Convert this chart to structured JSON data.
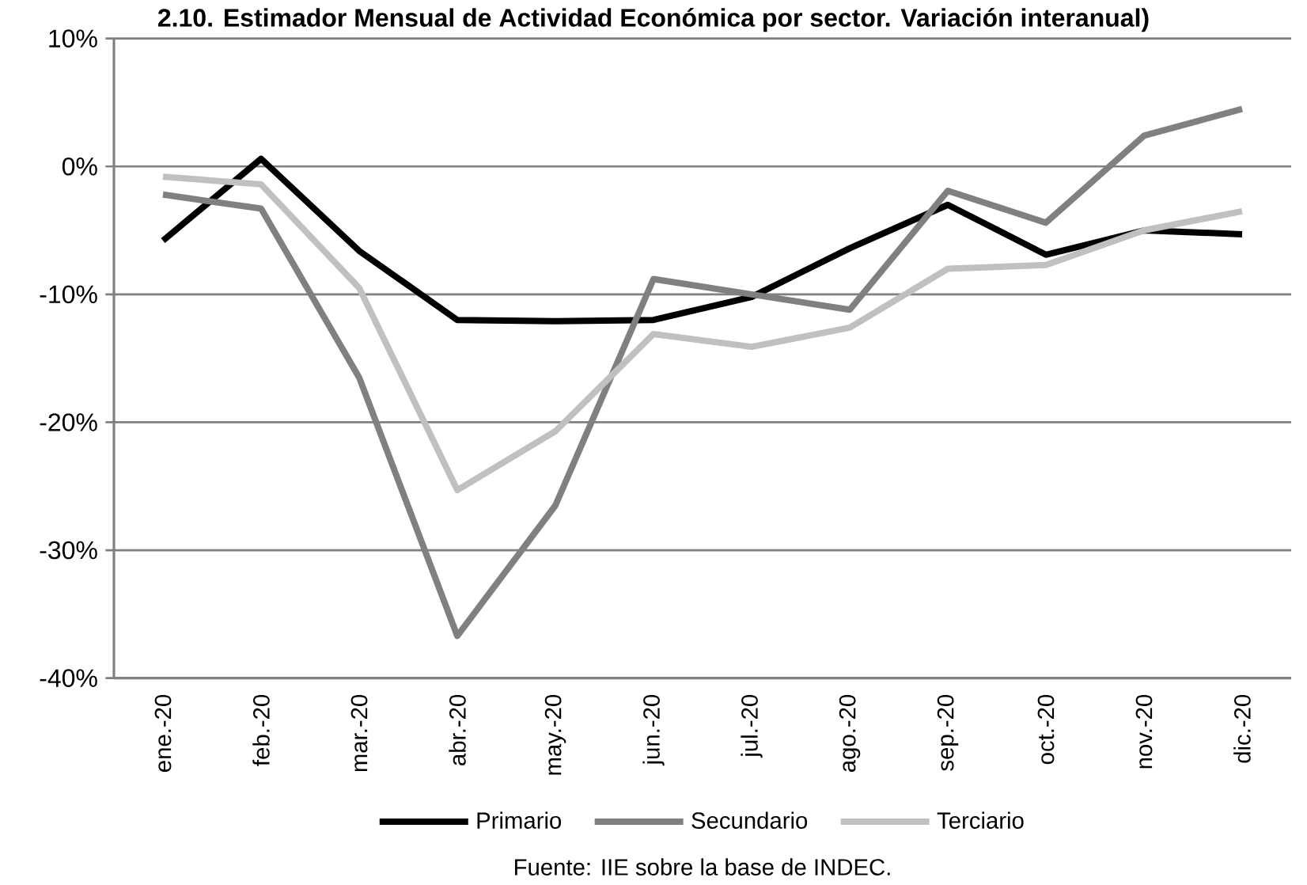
{
  "chart_data": {
    "type": "line",
    "title": "2.10. Estimador Mensual de Actividad Económica por sector. Variación interanual)",
    "categories": [
      "ene.-20",
      "feb.-20",
      "mar.-20",
      "abr.-20",
      "may.-20",
      "jun.-20",
      "jul.-20",
      "ago.-20",
      "sep.-20",
      "oct.-20",
      "nov.-20",
      "dic.-20"
    ],
    "series": [
      {
        "name": "Primario",
        "color": "#000000",
        "values": [
          -5.8,
          0.6,
          -6.6,
          -12.0,
          -12.1,
          -12.0,
          -10.2,
          -6.4,
          -3.0,
          -6.9,
          -5.0,
          -5.3
        ]
      },
      {
        "name": "Secundario",
        "color": "#808080",
        "values": [
          -2.2,
          -3.3,
          -16.5,
          -36.7,
          -26.5,
          -8.8,
          -10.0,
          -11.2,
          -1.9,
          -4.4,
          2.4,
          4.5
        ]
      },
      {
        "name": "Terciario",
        "color": "#c0c0c0",
        "values": [
          -0.8,
          -1.4,
          -9.5,
          -25.3,
          -20.7,
          -13.1,
          -14.1,
          -12.6,
          -8.0,
          -7.7,
          -5.0,
          -3.5
        ]
      }
    ],
    "ylim": [
      -40,
      10
    ],
    "yticks": [
      {
        "value": -40,
        "label": "-40%"
      },
      {
        "value": -30,
        "label": "-30%"
      },
      {
        "value": -20,
        "label": "-20%"
      },
      {
        "value": -10,
        "label": "-10%"
      },
      {
        "value": 0,
        "label": "0%"
      },
      {
        "value": 10,
        "label": "10%"
      }
    ],
    "grid": "y",
    "legend": "bottom",
    "marker": "none",
    "line_style": "solid",
    "annotations": [
      "Fuente: IIE sobre la base de INDEC."
    ]
  }
}
